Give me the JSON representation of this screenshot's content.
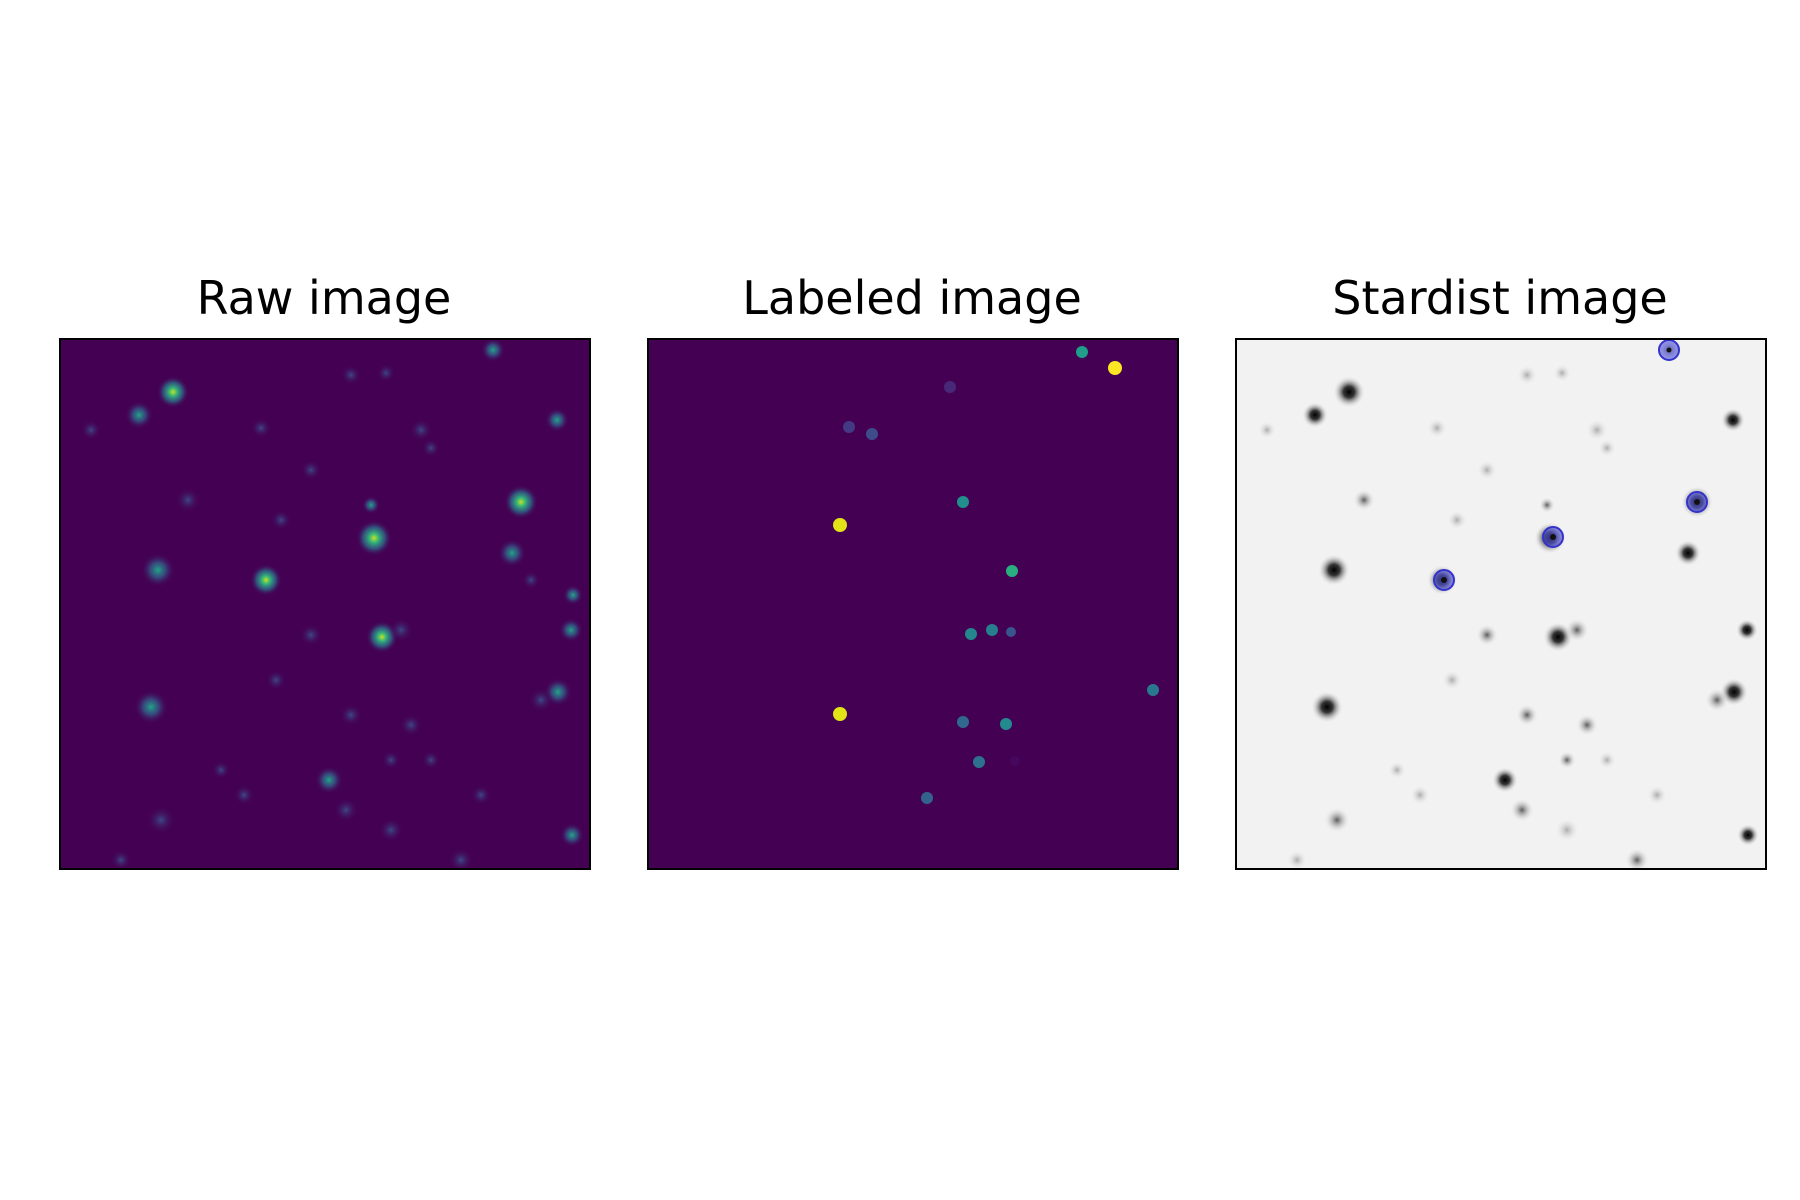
{
  "figure": {
    "panels": [
      {
        "title": "Raw image",
        "background_color": "#440154"
      },
      {
        "title": "Labeled image",
        "background_color": "#440154"
      },
      {
        "title": "Stardist image",
        "background_color": "#f2f2f2",
        "marker_color": "#5555dd"
      }
    ]
  }
}
